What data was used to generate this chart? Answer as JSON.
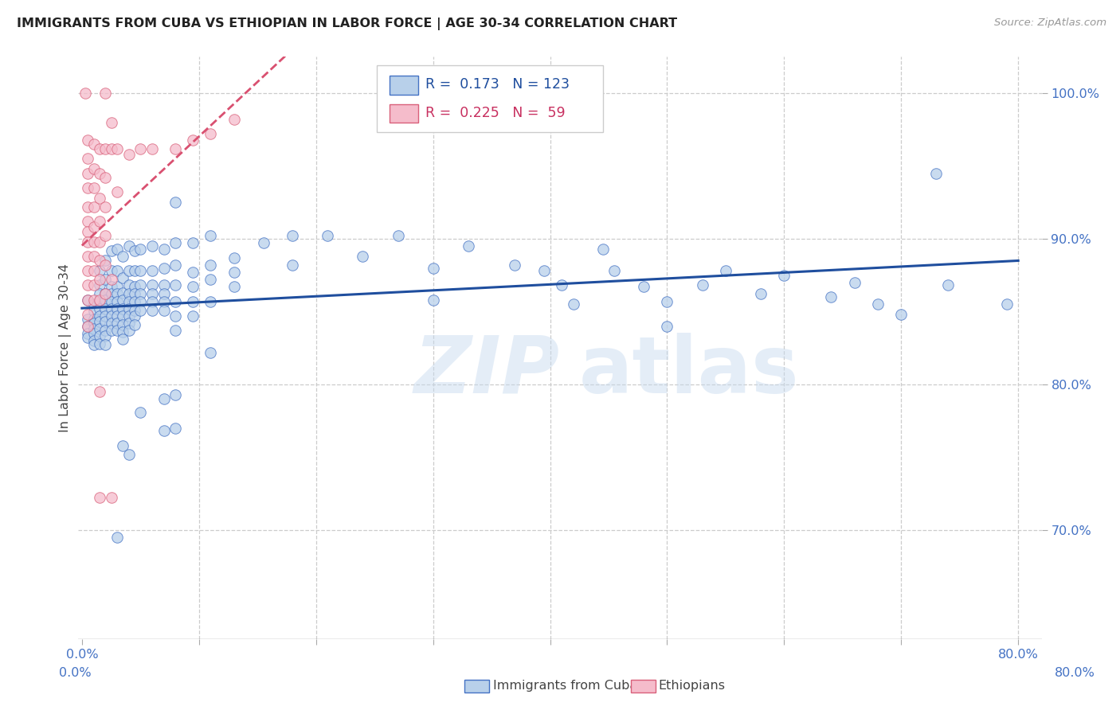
{
  "title": "IMMIGRANTS FROM CUBA VS ETHIOPIAN IN LABOR FORCE | AGE 30-34 CORRELATION CHART",
  "source": "Source: ZipAtlas.com",
  "ylabel": "In Labor Force | Age 30-34",
  "xlim": [
    -0.003,
    0.82
  ],
  "ylim": [
    0.625,
    1.025
  ],
  "ytick_values": [
    0.7,
    0.8,
    0.9,
    1.0
  ],
  "ytick_labels": [
    "70.0%",
    "80.0%",
    "90.0%",
    "100.0%"
  ],
  "xtick_values": [
    0.0,
    0.1,
    0.2,
    0.3,
    0.4,
    0.5,
    0.6,
    0.7,
    0.8
  ],
  "xtick_labels": [
    "0.0%",
    "",
    "",
    "",
    "",
    "",
    "",
    "",
    "80.0%"
  ],
  "cuba_color": "#b8d0ea",
  "cuba_edge_color": "#4472c4",
  "ethiopia_color": "#f5bccb",
  "ethiopia_edge_color": "#d9607a",
  "cuba_R": 0.173,
  "cuba_N": 123,
  "ethiopia_R": 0.225,
  "ethiopia_N": 59,
  "cuba_line_color": "#1f4e9e",
  "ethiopia_line_color": "#d95070",
  "legend_label_cuba": "Immigrants from Cuba",
  "legend_label_ethiopia": "Ethiopians",
  "cuba_points": [
    [
      0.005,
      0.858
    ],
    [
      0.005,
      0.845
    ],
    [
      0.005,
      0.84
    ],
    [
      0.005,
      0.835
    ],
    [
      0.005,
      0.832
    ],
    [
      0.01,
      0.855
    ],
    [
      0.01,
      0.85
    ],
    [
      0.01,
      0.845
    ],
    [
      0.01,
      0.842
    ],
    [
      0.01,
      0.838
    ],
    [
      0.01,
      0.835
    ],
    [
      0.01,
      0.83
    ],
    [
      0.01,
      0.827
    ],
    [
      0.015,
      0.878
    ],
    [
      0.015,
      0.868
    ],
    [
      0.015,
      0.862
    ],
    [
      0.015,
      0.857
    ],
    [
      0.015,
      0.852
    ],
    [
      0.015,
      0.847
    ],
    [
      0.015,
      0.843
    ],
    [
      0.015,
      0.838
    ],
    [
      0.015,
      0.833
    ],
    [
      0.015,
      0.828
    ],
    [
      0.02,
      0.885
    ],
    [
      0.02,
      0.872
    ],
    [
      0.02,
      0.862
    ],
    [
      0.02,
      0.858
    ],
    [
      0.02,
      0.852
    ],
    [
      0.02,
      0.847
    ],
    [
      0.02,
      0.843
    ],
    [
      0.02,
      0.837
    ],
    [
      0.02,
      0.833
    ],
    [
      0.02,
      0.827
    ],
    [
      0.025,
      0.892
    ],
    [
      0.025,
      0.878
    ],
    [
      0.025,
      0.867
    ],
    [
      0.025,
      0.862
    ],
    [
      0.025,
      0.857
    ],
    [
      0.025,
      0.852
    ],
    [
      0.025,
      0.847
    ],
    [
      0.025,
      0.842
    ],
    [
      0.025,
      0.837
    ],
    [
      0.03,
      0.893
    ],
    [
      0.03,
      0.878
    ],
    [
      0.03,
      0.867
    ],
    [
      0.03,
      0.862
    ],
    [
      0.03,
      0.857
    ],
    [
      0.03,
      0.852
    ],
    [
      0.03,
      0.847
    ],
    [
      0.03,
      0.842
    ],
    [
      0.03,
      0.837
    ],
    [
      0.03,
      0.695
    ],
    [
      0.035,
      0.888
    ],
    [
      0.035,
      0.873
    ],
    [
      0.035,
      0.863
    ],
    [
      0.035,
      0.858
    ],
    [
      0.035,
      0.852
    ],
    [
      0.035,
      0.847
    ],
    [
      0.035,
      0.841
    ],
    [
      0.035,
      0.836
    ],
    [
      0.035,
      0.831
    ],
    [
      0.035,
      0.758
    ],
    [
      0.04,
      0.895
    ],
    [
      0.04,
      0.878
    ],
    [
      0.04,
      0.868
    ],
    [
      0.04,
      0.862
    ],
    [
      0.04,
      0.857
    ],
    [
      0.04,
      0.852
    ],
    [
      0.04,
      0.847
    ],
    [
      0.04,
      0.842
    ],
    [
      0.04,
      0.837
    ],
    [
      0.04,
      0.752
    ],
    [
      0.045,
      0.892
    ],
    [
      0.045,
      0.878
    ],
    [
      0.045,
      0.867
    ],
    [
      0.045,
      0.862
    ],
    [
      0.045,
      0.857
    ],
    [
      0.045,
      0.851
    ],
    [
      0.045,
      0.847
    ],
    [
      0.045,
      0.841
    ],
    [
      0.05,
      0.893
    ],
    [
      0.05,
      0.878
    ],
    [
      0.05,
      0.868
    ],
    [
      0.05,
      0.862
    ],
    [
      0.05,
      0.857
    ],
    [
      0.05,
      0.851
    ],
    [
      0.05,
      0.781
    ],
    [
      0.06,
      0.895
    ],
    [
      0.06,
      0.878
    ],
    [
      0.06,
      0.868
    ],
    [
      0.06,
      0.862
    ],
    [
      0.06,
      0.857
    ],
    [
      0.06,
      0.851
    ],
    [
      0.07,
      0.893
    ],
    [
      0.07,
      0.88
    ],
    [
      0.07,
      0.868
    ],
    [
      0.07,
      0.862
    ],
    [
      0.07,
      0.857
    ],
    [
      0.07,
      0.851
    ],
    [
      0.07,
      0.79
    ],
    [
      0.07,
      0.768
    ],
    [
      0.08,
      0.925
    ],
    [
      0.08,
      0.897
    ],
    [
      0.08,
      0.882
    ],
    [
      0.08,
      0.868
    ],
    [
      0.08,
      0.857
    ],
    [
      0.08,
      0.847
    ],
    [
      0.08,
      0.837
    ],
    [
      0.08,
      0.793
    ],
    [
      0.08,
      0.77
    ],
    [
      0.095,
      0.897
    ],
    [
      0.095,
      0.877
    ],
    [
      0.095,
      0.867
    ],
    [
      0.095,
      0.857
    ],
    [
      0.095,
      0.847
    ],
    [
      0.11,
      0.902
    ],
    [
      0.11,
      0.882
    ],
    [
      0.11,
      0.872
    ],
    [
      0.11,
      0.857
    ],
    [
      0.11,
      0.822
    ],
    [
      0.13,
      0.887
    ],
    [
      0.13,
      0.877
    ],
    [
      0.13,
      0.867
    ],
    [
      0.155,
      0.897
    ],
    [
      0.18,
      0.902
    ],
    [
      0.18,
      0.882
    ],
    [
      0.21,
      0.902
    ],
    [
      0.24,
      0.888
    ],
    [
      0.27,
      0.902
    ],
    [
      0.3,
      0.88
    ],
    [
      0.3,
      0.858
    ],
    [
      0.33,
      0.895
    ],
    [
      0.37,
      0.882
    ],
    [
      0.395,
      0.878
    ],
    [
      0.41,
      0.868
    ],
    [
      0.42,
      0.855
    ],
    [
      0.445,
      0.893
    ],
    [
      0.455,
      0.878
    ],
    [
      0.48,
      0.867
    ],
    [
      0.5,
      0.857
    ],
    [
      0.5,
      0.84
    ],
    [
      0.53,
      0.868
    ],
    [
      0.55,
      0.878
    ],
    [
      0.58,
      0.862
    ],
    [
      0.6,
      0.875
    ],
    [
      0.64,
      0.86
    ],
    [
      0.66,
      0.87
    ],
    [
      0.68,
      0.855
    ],
    [
      0.7,
      0.848
    ],
    [
      0.73,
      0.945
    ],
    [
      0.74,
      0.868
    ],
    [
      0.79,
      0.855
    ]
  ],
  "ethiopia_points": [
    [
      0.003,
      1.0
    ],
    [
      0.005,
      0.968
    ],
    [
      0.005,
      0.955
    ],
    [
      0.005,
      0.945
    ],
    [
      0.005,
      0.935
    ],
    [
      0.005,
      0.922
    ],
    [
      0.005,
      0.912
    ],
    [
      0.005,
      0.905
    ],
    [
      0.005,
      0.898
    ],
    [
      0.005,
      0.888
    ],
    [
      0.005,
      0.878
    ],
    [
      0.005,
      0.868
    ],
    [
      0.005,
      0.858
    ],
    [
      0.005,
      0.848
    ],
    [
      0.005,
      0.84
    ],
    [
      0.01,
      0.965
    ],
    [
      0.01,
      0.948
    ],
    [
      0.01,
      0.935
    ],
    [
      0.01,
      0.922
    ],
    [
      0.01,
      0.908
    ],
    [
      0.01,
      0.898
    ],
    [
      0.01,
      0.888
    ],
    [
      0.01,
      0.878
    ],
    [
      0.01,
      0.868
    ],
    [
      0.01,
      0.858
    ],
    [
      0.015,
      0.962
    ],
    [
      0.015,
      0.945
    ],
    [
      0.015,
      0.928
    ],
    [
      0.015,
      0.912
    ],
    [
      0.015,
      0.898
    ],
    [
      0.015,
      0.885
    ],
    [
      0.015,
      0.872
    ],
    [
      0.015,
      0.858
    ],
    [
      0.015,
      0.795
    ],
    [
      0.015,
      0.722
    ],
    [
      0.02,
      1.0
    ],
    [
      0.02,
      0.962
    ],
    [
      0.02,
      0.942
    ],
    [
      0.02,
      0.922
    ],
    [
      0.02,
      0.902
    ],
    [
      0.02,
      0.882
    ],
    [
      0.02,
      0.862
    ],
    [
      0.025,
      0.98
    ],
    [
      0.025,
      0.962
    ],
    [
      0.025,
      0.872
    ],
    [
      0.025,
      0.722
    ],
    [
      0.03,
      0.962
    ],
    [
      0.03,
      0.932
    ],
    [
      0.04,
      0.958
    ],
    [
      0.05,
      0.962
    ],
    [
      0.06,
      0.962
    ],
    [
      0.08,
      0.962
    ],
    [
      0.095,
      0.968
    ],
    [
      0.11,
      0.972
    ],
    [
      0.13,
      0.982
    ]
  ]
}
